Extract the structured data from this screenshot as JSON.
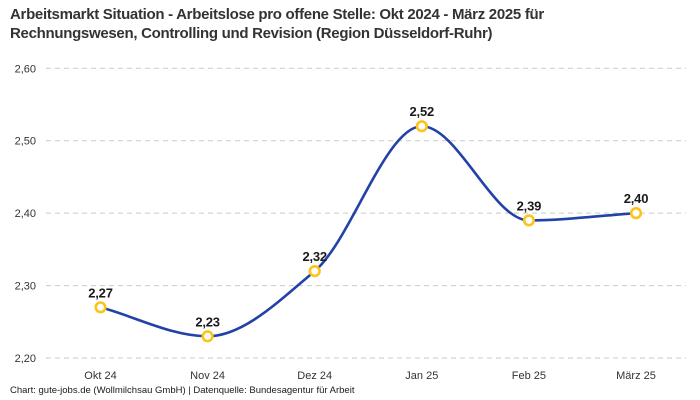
{
  "header": {
    "title_line1": "Arbeitsmarkt Situation - Arbeitslose pro offene Stelle: Okt 2024 - März 2025 für",
    "title_line2": "Rechnungswesen, Controlling und Revision (Region Düsseldorf-Ruhr)"
  },
  "footer": {
    "source": "Chart: gute-jobs.de (Wollmilchsau GmbH) | Datenquelle: Bundesagentur für Arbeit"
  },
  "chart_data": {
    "type": "line",
    "title": "Arbeitsmarkt Situation - Arbeitslose pro offene Stelle: Okt 2024 - März 2025 für Rechnungswesen, Controlling und Revision (Region Düsseldorf-Ruhr)",
    "categories": [
      "Okt 24",
      "Nov 24",
      "Dez 24",
      "Jan 25",
      "Feb 25",
      "März 25"
    ],
    "values": [
      2.27,
      2.23,
      2.32,
      2.52,
      2.39,
      2.4
    ],
    "value_labels": [
      "2,27",
      "2,23",
      "2,32",
      "2,52",
      "2,39",
      "2,40"
    ],
    "y_ticks": [
      {
        "value": 2.6,
        "label": "2,60"
      },
      {
        "value": 2.5,
        "label": "2,50"
      },
      {
        "value": 2.4,
        "label": "2,40"
      },
      {
        "value": 2.3,
        "label": "2,30"
      },
      {
        "value": 2.2,
        "label": "2,20"
      }
    ],
    "ylim": [
      2.2,
      2.6
    ],
    "xlabel": "",
    "ylabel": "",
    "grid": "horizontal-dashed",
    "legend": "none",
    "curve": "smooth-monotone",
    "colors": {
      "line": "#2342a8",
      "marker_ring": "#fcc419",
      "marker_fill": "#ffffff",
      "grid": "#c9c9c9",
      "tick_text": "#333333",
      "value_label_text": "#1a1a1a"
    }
  }
}
